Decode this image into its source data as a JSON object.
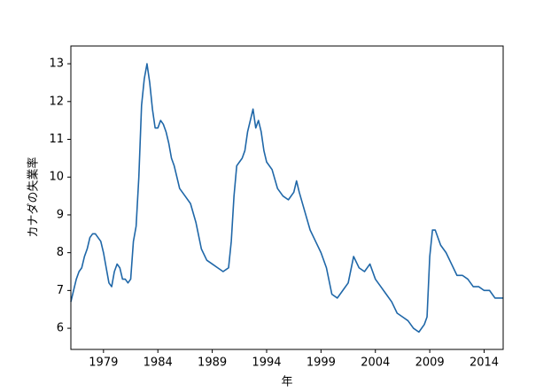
{
  "chart_data": {
    "type": "line",
    "color": "#1f67a8",
    "x_label": "年",
    "y_label": "カナダの失業率",
    "x": [
      1976.0,
      1976.25,
      1976.5,
      1976.75,
      1977.0,
      1977.25,
      1977.5,
      1977.75,
      1978.0,
      1978.25,
      1978.5,
      1978.75,
      1979.0,
      1979.25,
      1979.5,
      1979.75,
      1980.0,
      1980.25,
      1980.5,
      1980.75,
      1981.0,
      1981.25,
      1981.5,
      1981.75,
      1982.0,
      1982.25,
      1982.5,
      1982.75,
      1983.0,
      1983.25,
      1983.5,
      1983.75,
      1984.0,
      1984.25,
      1984.5,
      1984.75,
      1985.0,
      1985.25,
      1985.5,
      1985.75,
      1986.0,
      1986.5,
      1987.0,
      1987.5,
      1988.0,
      1988.5,
      1989.0,
      1989.5,
      1990.0,
      1990.5,
      1990.75,
      1991.0,
      1991.25,
      1991.5,
      1991.75,
      1992.0,
      1992.25,
      1992.5,
      1992.75,
      1993.0,
      1993.25,
      1993.5,
      1993.75,
      1994.0,
      1994.5,
      1995.0,
      1995.5,
      1996.0,
      1996.5,
      1996.75,
      1997.0,
      1997.5,
      1998.0,
      1998.5,
      1999.0,
      1999.5,
      2000.0,
      2000.5,
      2001.0,
      2001.5,
      2002.0,
      2002.5,
      2003.0,
      2003.5,
      2004.0,
      2004.5,
      2005.0,
      2005.5,
      2006.0,
      2006.5,
      2007.0,
      2007.5,
      2008.0,
      2008.5,
      2008.75,
      2009.0,
      2009.25,
      2009.5,
      2010.0,
      2010.5,
      2011.0,
      2011.5,
      2012.0,
      2012.5,
      2013.0,
      2013.5,
      2014.0,
      2014.5,
      2015.0,
      2015.5,
      2015.75
    ],
    "values": [
      6.7,
      7.0,
      7.3,
      7.5,
      7.6,
      7.9,
      8.1,
      8.4,
      8.5,
      8.5,
      8.4,
      8.3,
      8.0,
      7.6,
      7.2,
      7.1,
      7.5,
      7.7,
      7.6,
      7.3,
      7.3,
      7.2,
      7.3,
      8.3,
      8.7,
      10.0,
      11.9,
      12.6,
      13.0,
      12.5,
      11.8,
      11.3,
      11.3,
      11.5,
      11.4,
      11.2,
      10.9,
      10.5,
      10.3,
      10.0,
      9.7,
      9.5,
      9.3,
      8.8,
      8.1,
      7.8,
      7.7,
      7.6,
      7.5,
      7.6,
      8.3,
      9.5,
      10.3,
      10.4,
      10.5,
      10.7,
      11.2,
      11.5,
      11.8,
      11.3,
      11.5,
      11.2,
      10.7,
      10.4,
      10.2,
      9.7,
      9.5,
      9.4,
      9.6,
      9.9,
      9.6,
      9.1,
      8.6,
      8.3,
      8.0,
      7.6,
      6.9,
      6.8,
      7.0,
      7.2,
      7.9,
      7.6,
      7.5,
      7.7,
      7.3,
      7.1,
      6.9,
      6.7,
      6.4,
      6.3,
      6.2,
      6.0,
      5.9,
      6.1,
      6.3,
      7.9,
      8.6,
      8.6,
      8.2,
      8.0,
      7.7,
      7.4,
      7.4,
      7.3,
      7.1,
      7.1,
      7.0,
      7.0,
      6.8,
      6.8,
      6.8
    ],
    "xlim": [
      1976.0,
      2015.75
    ],
    "ylim": [
      5.44,
      13.47
    ],
    "xticks": [
      1979,
      1984,
      1989,
      1994,
      1999,
      2004,
      2009,
      2014
    ],
    "yticks": [
      6,
      7,
      8,
      9,
      10,
      11,
      12,
      13
    ]
  }
}
